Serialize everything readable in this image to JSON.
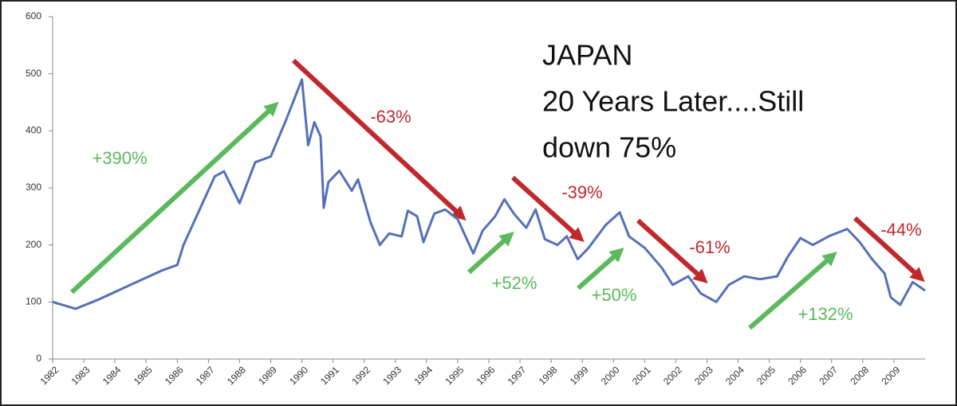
{
  "chart_data": {
    "type": "line",
    "title_lines": [
      "JAPAN",
      "20 Years Later....Still",
      "down 75%"
    ],
    "x": [
      1982.0,
      1982.74,
      1983.5,
      1984.5,
      1985.5,
      1986.0,
      1986.2,
      1987.2,
      1987.5,
      1988.0,
      1988.5,
      1989.0,
      1989.5,
      1990.0,
      1990.2,
      1990.4,
      1990.6,
      1990.7,
      1990.85,
      1991.2,
      1991.6,
      1991.8,
      1992.2,
      1992.5,
      1992.8,
      1993.2,
      1993.4,
      1993.7,
      1993.9,
      1994.25,
      1994.6,
      1995.0,
      1995.5,
      1995.8,
      1996.2,
      1996.5,
      1996.8,
      1997.2,
      1997.5,
      1997.8,
      1998.2,
      1998.5,
      1998.85,
      1999.2,
      1999.75,
      2000.2,
      2000.5,
      2001.0,
      2001.55,
      2001.9,
      2002.4,
      2002.8,
      2003.3,
      2003.7,
      2004.2,
      2004.7,
      2005.25,
      2005.6,
      2006.0,
      2006.4,
      2006.9,
      2007.5,
      2007.9,
      2008.3,
      2008.7,
      2008.9,
      2009.2,
      2009.6,
      2010.0
    ],
    "series": [
      {
        "color": "#5470b8",
        "values": [
          100,
          88,
          105,
          130,
          155,
          165,
          200,
          320,
          329,
          273,
          345,
          355,
          420,
          490,
          375,
          415,
          390,
          265,
          310,
          330,
          295,
          315,
          240,
          200,
          220,
          215,
          260,
          250,
          205,
          255,
          262,
          245,
          185,
          225,
          250,
          280,
          255,
          230,
          262,
          210,
          200,
          215,
          175,
          195,
          235,
          257,
          215,
          195,
          160,
          130,
          145,
          115,
          100,
          130,
          145,
          140,
          145,
          180,
          212,
          200,
          215,
          228,
          205,
          175,
          150,
          108,
          95,
          135,
          120
        ]
      }
    ],
    "xlim": [
      1982,
      2010
    ],
    "xticks": [
      1982,
      1983,
      1984,
      1985,
      1986,
      1987,
      1988,
      1989,
      1990,
      1991,
      1992,
      1993,
      1994,
      1995,
      1996,
      1997,
      1998,
      1999,
      2000,
      2001,
      2002,
      2003,
      2004,
      2005,
      2006,
      2007,
      2008,
      2009
    ],
    "ylim": [
      0,
      600
    ],
    "yticks": [
      0,
      100,
      200,
      300,
      400,
      500,
      600
    ],
    "annotations": [
      {
        "text": "+390%",
        "color": "#5cb85c"
      },
      {
        "text": "-63%",
        "color": "#c0282d"
      },
      {
        "text": "-39%",
        "color": "#c0282d"
      },
      {
        "text": "+52%",
        "color": "#5cb85c"
      },
      {
        "text": "+50%",
        "color": "#5cb85c"
      },
      {
        "text": "-61%",
        "color": "#c0282d"
      },
      {
        "text": "+132%",
        "color": "#5cb85c"
      },
      {
        "text": "-44%",
        "color": "#c0282d"
      }
    ]
  }
}
